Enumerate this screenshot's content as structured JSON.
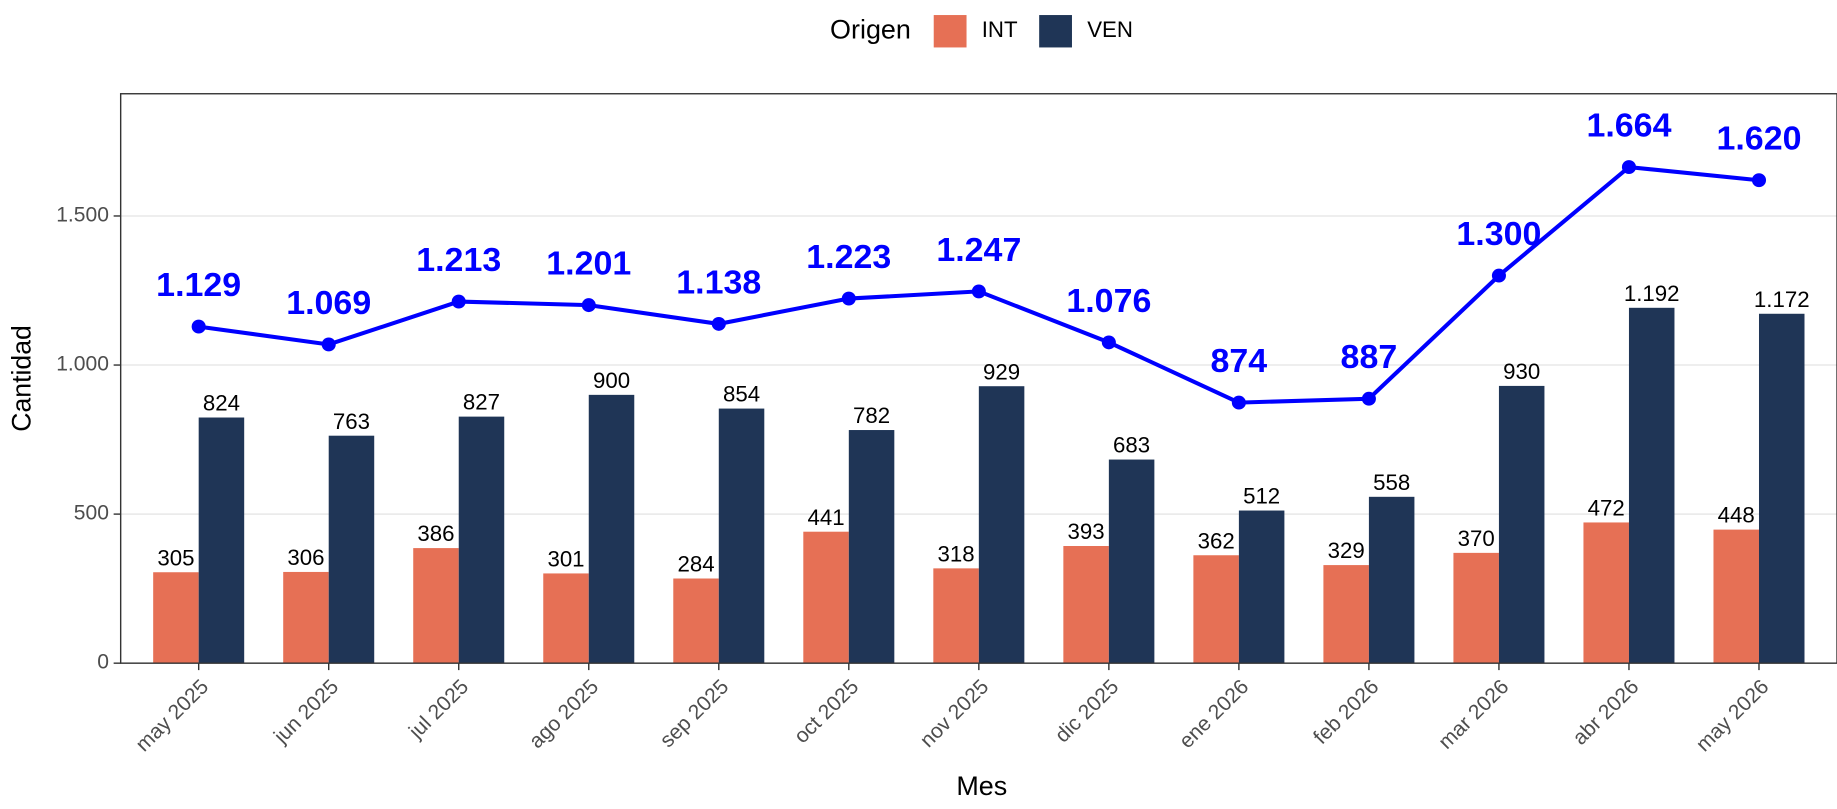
{
  "chart_data": {
    "type": "bar",
    "x_label": "Mes",
    "y_label": "Cantidad",
    "legend_title": "Origen",
    "legend_position": "top",
    "grid": true,
    "categories": [
      "may 2025",
      "jun 2025",
      "jul 2025",
      "ago 2025",
      "sep 2025",
      "oct 2025",
      "nov 2025",
      "dic 2025",
      "ene 2026",
      "feb 2026",
      "mar 2026",
      "abr 2026",
      "may 2026"
    ],
    "series": [
      {
        "name": "INT",
        "color": "#e67055",
        "values": [
          305,
          306,
          386,
          301,
          284,
          441,
          318,
          393,
          362,
          329,
          370,
          472,
          448
        ]
      },
      {
        "name": "VEN",
        "color": "#1f3556",
        "values": [
          824,
          763,
          827,
          900,
          854,
          782,
          929,
          683,
          512,
          558,
          930,
          1192,
          1172
        ],
        "value_labels": [
          "824",
          "763",
          "827",
          "900",
          "854",
          "782",
          "929",
          "683",
          "512",
          "558",
          "930",
          "1.192",
          "1.172"
        ]
      }
    ],
    "line": {
      "type": "line",
      "color": "#0000ff",
      "values": [
        1129,
        1069,
        1213,
        1201,
        1138,
        1223,
        1247,
        1076,
        874,
        887,
        1300,
        1664,
        1620
      ],
      "value_labels": [
        "1.129",
        "1.069",
        "1.213",
        "1.201",
        "1.138",
        "1.223",
        "1.247",
        "1.076",
        "874",
        "887",
        "1.300",
        "1.664",
        "1.620"
      ]
    },
    "ylim": [
      0,
      1910
    ],
    "yticks": [
      0,
      500,
      {
        "value": 1000,
        "label": "1.000"
      },
      {
        "value": 1500,
        "label": "1.500"
      }
    ]
  }
}
